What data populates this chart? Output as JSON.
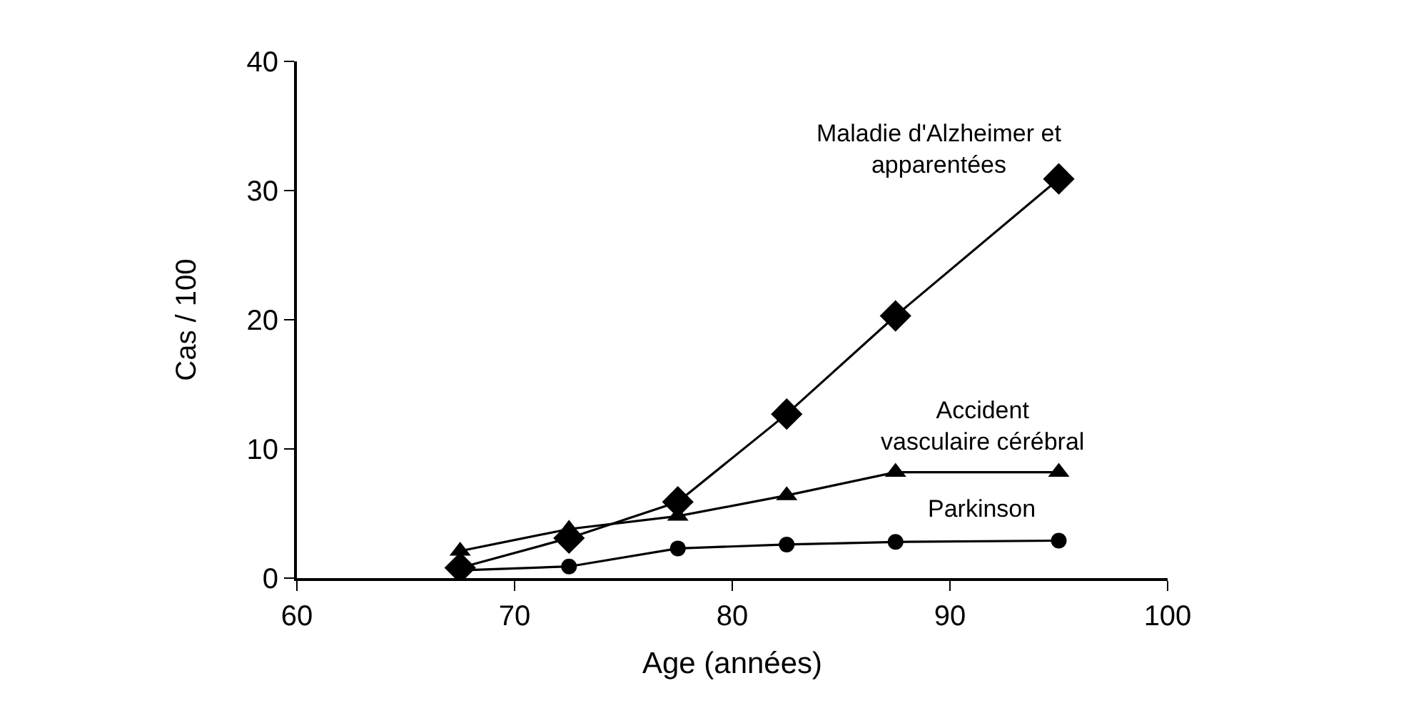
{
  "chart_data": {
    "type": "line",
    "xlabel": "Age (années)",
    "ylabel": "Cas / 100",
    "x": [
      67.5,
      72.5,
      77.5,
      82.5,
      87.5,
      95
    ],
    "series": [
      {
        "name": "Maladie d'Alzheimer et\napparentées",
        "color": "#000000",
        "marker": "diamond",
        "values": [
          0.8,
          3.1,
          5.9,
          12.7,
          20.3,
          30.9
        ]
      },
      {
        "name": "Accident\nvasculaire cérébral",
        "color": "#000000",
        "marker": "triangle",
        "values": [
          2.1,
          3.8,
          4.8,
          6.4,
          8.2,
          8.2
        ]
      },
      {
        "name": "Parkinson",
        "color": "#000000",
        "marker": "circle",
        "values": [
          0.6,
          0.9,
          2.3,
          2.6,
          2.8,
          2.9
        ]
      }
    ],
    "xlim": [
      60,
      100
    ],
    "xticks": [
      60,
      70,
      80,
      90,
      100
    ],
    "ylim": [
      0,
      40
    ],
    "yticks": [
      0,
      10,
      20,
      30,
      40
    ],
    "legend": false,
    "line_style": "solid"
  }
}
